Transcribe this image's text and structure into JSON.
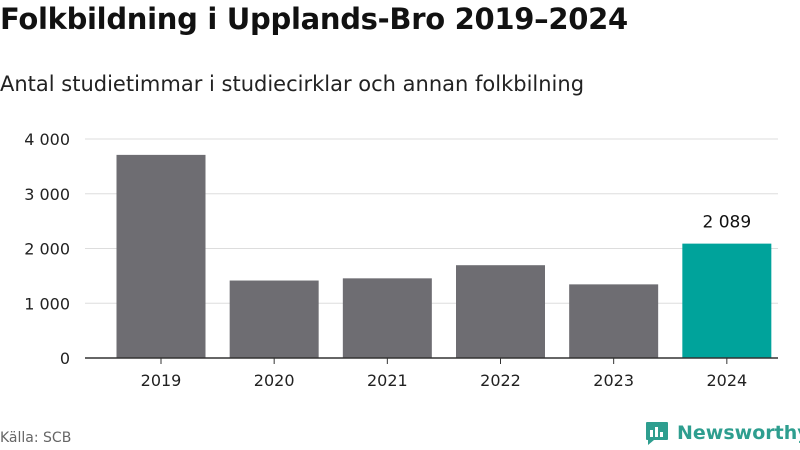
{
  "title": "Folkbildning i Upplands-Bro 2019–2024",
  "subtitle": "Antal studietimmar i studiecirklar och annan folkbilning",
  "source": "Källa: SCB",
  "brand": {
    "name": "Newsworthy",
    "icon": "newsworthy-logo-icon",
    "color": "#2e9e8f"
  },
  "colors": {
    "bar": "#6e6d72",
    "highlight": "#00a39b",
    "grid": "#dddddd",
    "axis": "#333333"
  },
  "chart_data": {
    "type": "bar",
    "title": "Folkbildning i Upplands-Bro 2019–2024",
    "subtitle": "Antal studietimmar i studiecirklar och annan folkbilning",
    "xlabel": "",
    "ylabel": "",
    "categories": [
      "2019",
      "2020",
      "2021",
      "2022",
      "2023",
      "2024"
    ],
    "values": [
      3710,
      1415,
      1455,
      1695,
      1345,
      2089
    ],
    "highlight_index": 5,
    "data_labels": [
      {
        "index": 5,
        "text": "2 089"
      }
    ],
    "ylim": [
      0,
      4000
    ],
    "yticks": [
      0,
      1000,
      2000,
      3000,
      4000
    ],
    "ytick_labels": [
      "0",
      "1 000",
      "2 000",
      "3 000",
      "4 000"
    ],
    "grid": true,
    "legend": "none"
  }
}
